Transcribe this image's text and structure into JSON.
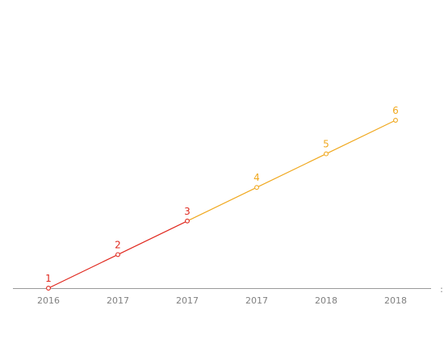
{
  "chart_data": {
    "type": "line",
    "title": "",
    "xlabel": "",
    "ylabel": "",
    "categories": [
      "2016",
      "2017",
      "2017",
      "2017",
      "2018",
      "2018"
    ],
    "series": [
      {
        "color": "#e0281e",
        "points": [
          {
            "index": 0,
            "value": 1,
            "label": "1"
          },
          {
            "index": 1,
            "value": 2,
            "label": "2"
          },
          {
            "index": 2,
            "value": 3,
            "label": "3"
          }
        ]
      },
      {
        "color": "#f0a81e",
        "points": [
          {
            "index": 2,
            "value": 3,
            "label": null
          },
          {
            "index": 3,
            "value": 4,
            "label": "4"
          },
          {
            "index": 4,
            "value": 5,
            "label": "5"
          },
          {
            "index": 5,
            "value": 6,
            "label": "6"
          }
        ]
      }
    ],
    "y_axis_visible": false,
    "grid": false,
    "axis_color": "#999999",
    "axis_end_mark": ":"
  }
}
